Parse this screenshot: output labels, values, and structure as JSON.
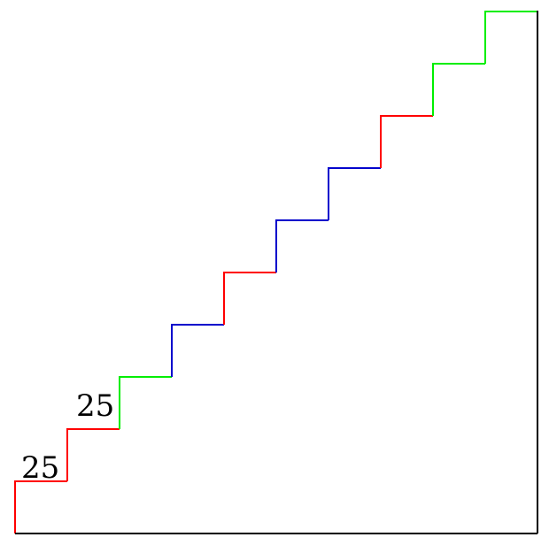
{
  "diagram": {
    "labels": {
      "step_1": "25",
      "step_2": "25"
    },
    "colors": {
      "outline": "#000000",
      "red": "#ff0000",
      "green": "#00ee00",
      "blue": "#0000cc"
    },
    "stair_segment_colors": [
      "red",
      "red",
      "green",
      "blue",
      "red",
      "blue",
      "blue",
      "red",
      "green",
      "green"
    ]
  }
}
